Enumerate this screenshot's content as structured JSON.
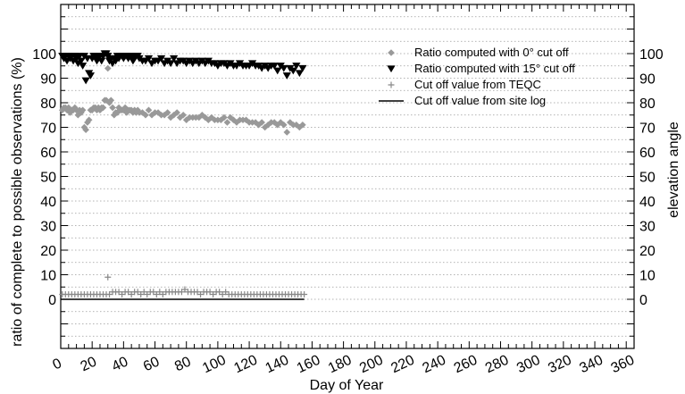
{
  "chart_data": {
    "type": "scatter",
    "xlabel": "Day of Year",
    "ylabel": "ratio of complete to possible observations (%)",
    "y2label": "elevation angle",
    "xlim": [
      0,
      365
    ],
    "ylim": [
      -20,
      120
    ],
    "y2lim": [
      -20,
      120
    ],
    "xticks": [
      0,
      20,
      40,
      60,
      80,
      100,
      120,
      140,
      160,
      180,
      200,
      220,
      240,
      260,
      280,
      300,
      320,
      340,
      360
    ],
    "yticks": [
      0,
      10,
      20,
      30,
      40,
      50,
      60,
      70,
      80,
      90,
      100
    ],
    "grid": true,
    "legend_position": "top-right",
    "series": [
      {
        "name": "Ratio computed with 0° cut off",
        "marker": "diamond",
        "color": "#999999",
        "x": [
          1,
          2,
          3,
          4,
          5,
          6,
          7,
          8,
          9,
          10,
          11,
          12,
          13,
          14,
          15,
          16,
          17,
          18,
          19,
          20,
          21,
          22,
          23,
          24,
          25,
          26,
          27,
          28,
          29,
          30,
          31,
          32,
          33,
          34,
          35,
          36,
          37,
          38,
          39,
          40,
          41,
          42,
          43,
          44,
          45,
          46,
          47,
          48,
          49,
          50,
          52,
          54,
          56,
          58,
          60,
          62,
          64,
          66,
          68,
          70,
          72,
          74,
          76,
          78,
          80,
          82,
          84,
          86,
          88,
          90,
          92,
          94,
          96,
          98,
          100,
          102,
          104,
          106,
          108,
          110,
          112,
          114,
          116,
          118,
          120,
          122,
          124,
          126,
          128,
          130,
          132,
          134,
          136,
          138,
          140,
          142,
          144,
          146,
          148,
          150,
          152,
          154
        ],
        "y": [
          77,
          78,
          78,
          77,
          78,
          76,
          77,
          77,
          78,
          77,
          75,
          77,
          76,
          77,
          70,
          69,
          72,
          73,
          77,
          77,
          78,
          78,
          77,
          78,
          77,
          78,
          78,
          81,
          81,
          94,
          80,
          81,
          78,
          75,
          76,
          76,
          78,
          77,
          77,
          77,
          78,
          76,
          77,
          77,
          77,
          76,
          77,
          76,
          77,
          76,
          76,
          75,
          77,
          75,
          76,
          76,
          75,
          75,
          76,
          74,
          75,
          76,
          74,
          75,
          73,
          74,
          74,
          74,
          74,
          75,
          74,
          73,
          74,
          73,
          73,
          73,
          74,
          72,
          74,
          73,
          72,
          73,
          73,
          73,
          72,
          72,
          72,
          71,
          72,
          70,
          71,
          72,
          72,
          71,
          72,
          71,
          68,
          72,
          71,
          71,
          70,
          71
        ]
      },
      {
        "name": "Ratio computed with 15° cut off",
        "marker": "triangle-down",
        "color": "#000000",
        "x": [
          1,
          2,
          3,
          4,
          5,
          6,
          7,
          8,
          9,
          10,
          11,
          12,
          13,
          14,
          15,
          16,
          17,
          18,
          19,
          20,
          21,
          22,
          23,
          24,
          25,
          26,
          27,
          28,
          29,
          30,
          31,
          32,
          33,
          34,
          35,
          36,
          37,
          38,
          39,
          40,
          41,
          42,
          43,
          44,
          45,
          46,
          47,
          48,
          49,
          50,
          52,
          54,
          56,
          58,
          60,
          62,
          64,
          66,
          68,
          70,
          72,
          74,
          76,
          78,
          80,
          82,
          84,
          86,
          88,
          90,
          92,
          94,
          96,
          98,
          100,
          102,
          104,
          106,
          108,
          110,
          112,
          114,
          116,
          118,
          120,
          122,
          124,
          126,
          128,
          130,
          132,
          134,
          136,
          138,
          140,
          142,
          144,
          146,
          148,
          150,
          152,
          154
        ],
        "y": [
          99,
          98,
          99,
          97,
          99,
          98,
          99,
          97,
          99,
          98,
          96,
          99,
          97,
          95,
          99,
          89,
          98,
          92,
          91,
          98,
          99,
          99,
          97,
          98,
          99,
          97,
          99,
          100,
          100,
          99,
          97,
          98,
          96,
          98,
          97,
          99,
          98,
          99,
          99,
          98,
          99,
          99,
          98,
          99,
          99,
          97,
          98,
          99,
          99,
          98,
          97,
          97,
          98,
          96,
          97,
          97,
          98,
          96,
          97,
          96,
          98,
          96,
          97,
          97,
          96,
          97,
          96,
          97,
          96,
          97,
          96,
          97,
          96,
          96,
          95,
          96,
          96,
          95,
          96,
          95,
          95,
          96,
          95,
          95,
          95,
          96,
          95,
          95,
          94,
          95,
          94,
          95,
          95,
          93,
          95,
          94,
          91,
          94,
          93,
          95,
          92,
          94
        ]
      },
      {
        "name": "Cut off value from TEQC",
        "marker": "plus",
        "color": "#888888",
        "x": [
          1,
          3,
          5,
          7,
          9,
          11,
          13,
          15,
          17,
          19,
          21,
          23,
          25,
          27,
          29,
          30,
          31,
          33,
          35,
          37,
          39,
          41,
          43,
          45,
          47,
          49,
          51,
          53,
          55,
          57,
          59,
          61,
          63,
          65,
          67,
          69,
          71,
          73,
          75,
          77,
          79,
          81,
          83,
          85,
          87,
          89,
          91,
          93,
          95,
          97,
          99,
          101,
          103,
          105,
          107,
          109,
          111,
          113,
          115,
          117,
          119,
          121,
          123,
          125,
          127,
          129,
          131,
          133,
          135,
          137,
          139,
          141,
          143,
          145,
          147,
          149,
          151,
          153,
          155
        ],
        "y": [
          2,
          2,
          2,
          2,
          2,
          2,
          2,
          2,
          2,
          2,
          2,
          2,
          2,
          2,
          2,
          9,
          2,
          3,
          3,
          3,
          2,
          3,
          3,
          2,
          3,
          3,
          2,
          3,
          2,
          3,
          3,
          2,
          3,
          2,
          3,
          3,
          3,
          3,
          3,
          3,
          4,
          3,
          3,
          3,
          3,
          2,
          3,
          3,
          3,
          2,
          3,
          3,
          2,
          3,
          2,
          2,
          2,
          2,
          2,
          2,
          2,
          2,
          2,
          2,
          2,
          2,
          2,
          2,
          2,
          2,
          2,
          2,
          2,
          2,
          2,
          2,
          2,
          2,
          2
        ]
      },
      {
        "name": "Cut off value from site log",
        "marker": "line",
        "color": "#000000",
        "x": [
          0,
          155
        ],
        "y": [
          0,
          0
        ]
      }
    ]
  }
}
